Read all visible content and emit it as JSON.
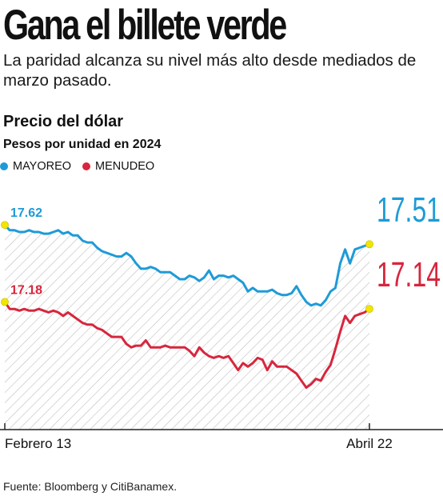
{
  "header": {
    "title": "Gana el billete verde",
    "subtitle": "La paridad alcanza su nivel más alto desde mediados de marzo pasado."
  },
  "chart_data": {
    "type": "line",
    "title": "Precio del dólar",
    "subtitle": "Pesos por unidad en 2024",
    "x_start_label": "Febrero 13",
    "x_end_label": "Abril 22",
    "ylim": [
      16.45,
      17.9
    ],
    "series": [
      {
        "name": "MAYOREO",
        "color": "#1e9bd7",
        "start_label": "17.62",
        "end_label": "17.51",
        "values": [
          17.62,
          17.59,
          17.59,
          17.58,
          17.58,
          17.59,
          17.58,
          17.58,
          17.57,
          17.57,
          17.58,
          17.59,
          17.57,
          17.58,
          17.56,
          17.56,
          17.53,
          17.52,
          17.52,
          17.49,
          17.47,
          17.46,
          17.45,
          17.44,
          17.44,
          17.46,
          17.44,
          17.4,
          17.37,
          17.37,
          17.38,
          17.37,
          17.35,
          17.35,
          17.35,
          17.33,
          17.31,
          17.31,
          17.33,
          17.32,
          17.3,
          17.32,
          17.36,
          17.31,
          17.33,
          17.33,
          17.32,
          17.33,
          17.31,
          17.29,
          17.24,
          17.26,
          17.24,
          17.24,
          17.24,
          17.25,
          17.23,
          17.22,
          17.22,
          17.23,
          17.27,
          17.22,
          17.18,
          17.16,
          17.17,
          17.16,
          17.19,
          17.24,
          17.26,
          17.4,
          17.48,
          17.4,
          17.48,
          17.49,
          17.5,
          17.51
        ]
      },
      {
        "name": "MENUDEO",
        "color": "#d7263d",
        "start_label": "17.18",
        "end_label": "17.14",
        "values": [
          17.18,
          17.14,
          17.14,
          17.13,
          17.14,
          17.13,
          17.13,
          17.14,
          17.13,
          17.12,
          17.13,
          17.12,
          17.1,
          17.12,
          17.1,
          17.08,
          17.06,
          17.05,
          17.05,
          17.03,
          17.02,
          17.0,
          16.98,
          16.98,
          16.98,
          16.94,
          16.92,
          16.93,
          16.93,
          16.96,
          16.92,
          16.92,
          16.92,
          16.93,
          16.92,
          16.92,
          16.92,
          16.92,
          16.9,
          16.87,
          16.92,
          16.89,
          16.87,
          16.86,
          16.87,
          16.86,
          16.87,
          16.83,
          16.79,
          16.83,
          16.81,
          16.83,
          16.86,
          16.85,
          16.79,
          16.84,
          16.81,
          16.81,
          16.81,
          16.79,
          16.77,
          16.73,
          16.69,
          16.71,
          16.74,
          16.73,
          16.78,
          16.82,
          16.91,
          17.01,
          17.1,
          17.06,
          17.1,
          17.11,
          17.12,
          17.14
        ]
      }
    ],
    "grid": false,
    "legend_position": "top-left"
  },
  "source": "Fuente: Bloomberg y CitiBanamex."
}
